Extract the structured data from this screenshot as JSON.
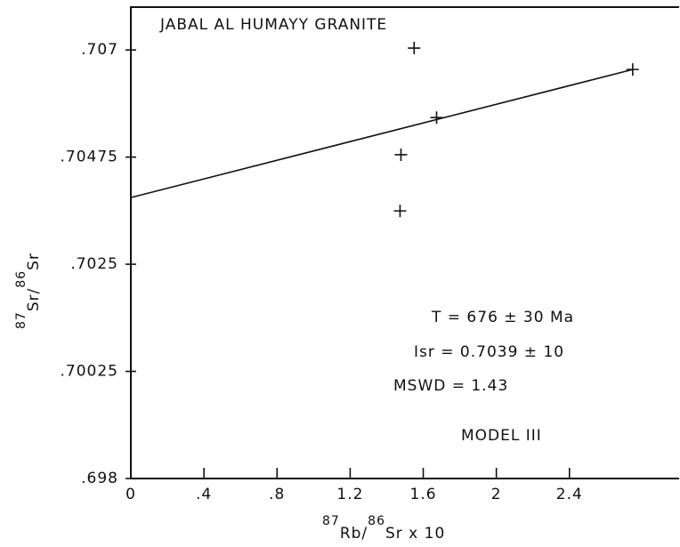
{
  "chart_data": {
    "type": "scatter",
    "title": "JABAL AL HUMAYY GRANITE",
    "x_label": [
      "87",
      "Rb/",
      "86",
      "Sr x 10"
    ],
    "y_label": [
      "87",
      "Sr/",
      "86",
      "Sr"
    ],
    "x": [
      1.55,
      2.746,
      1.673,
      1.478,
      1.473
    ],
    "y": [
      0.70704,
      0.70659,
      0.70558,
      0.7048,
      0.70362
    ],
    "fit_line": {
      "x": [
        0,
        2.746
      ],
      "y": [
        0.7039,
        0.70659
      ]
    },
    "xlim": [
      0,
      3.0
    ],
    "ylim": [
      0.698,
      0.7079
    ],
    "xticks": [
      0,
      {
        "value": 0.4,
        "label": ".4"
      },
      {
        "value": 0.8,
        "label": ".8"
      },
      1.2,
      1.6,
      2,
      2.4
    ],
    "yticks": [
      {
        "value": 0.698,
        "label": ".698"
      },
      {
        "value": 0.70025,
        "label": ".70025"
      },
      {
        "value": 0.7025,
        "label": ".7025"
      },
      {
        "value": 0.70475,
        "label": ".70475"
      },
      {
        "value": 0.707,
        "label": ".707"
      }
    ],
    "annotations": [
      "T = 676 ± 30 Ma",
      "Isr = 0.7039 ± 10",
      "MSWD = 1.43",
      "MODEL III"
    ],
    "color": "#111111"
  }
}
